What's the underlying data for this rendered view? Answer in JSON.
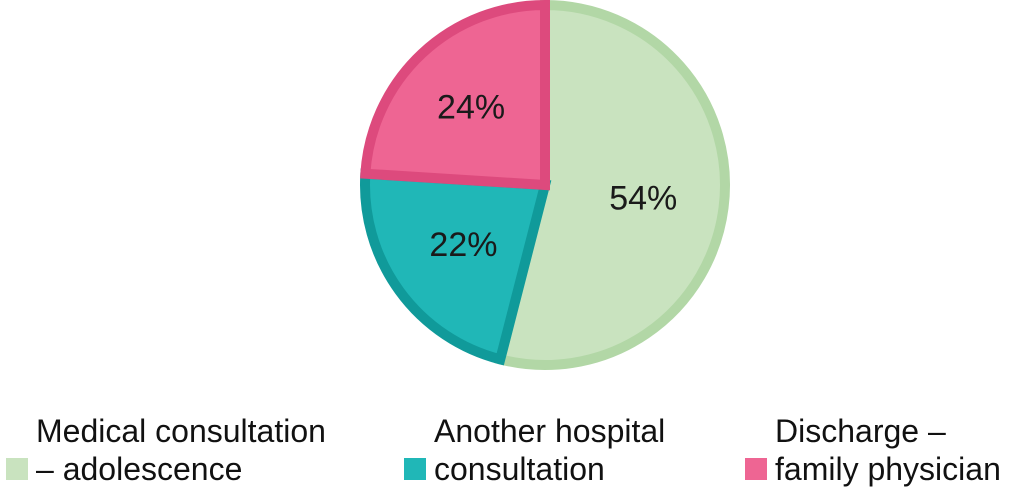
{
  "chart_data": {
    "type": "pie",
    "title": "",
    "slices": [
      {
        "label": "Medical consultation – adolescence",
        "label_lines": [
          "Medical consultation",
          "– adolescence"
        ],
        "value": 54,
        "value_label": "54%",
        "color": "#c9e3bf",
        "edge_color": "#b2d7a6"
      },
      {
        "label": "Another hospital consultation",
        "label_lines": [
          "Another hospital",
          "consultation"
        ],
        "value": 22,
        "value_label": "22%",
        "color": "#20b7b7",
        "edge_color": "#109a9a"
      },
      {
        "label": "Discharge – family physician",
        "label_lines": [
          "Discharge –",
          "family physician"
        ],
        "value": 24,
        "value_label": "24%",
        "color": "#ee6593",
        "edge_color": "#dd4a7d"
      }
    ],
    "start_angle_deg": 0,
    "direction": "clockwise",
    "legend": "bottom"
  }
}
